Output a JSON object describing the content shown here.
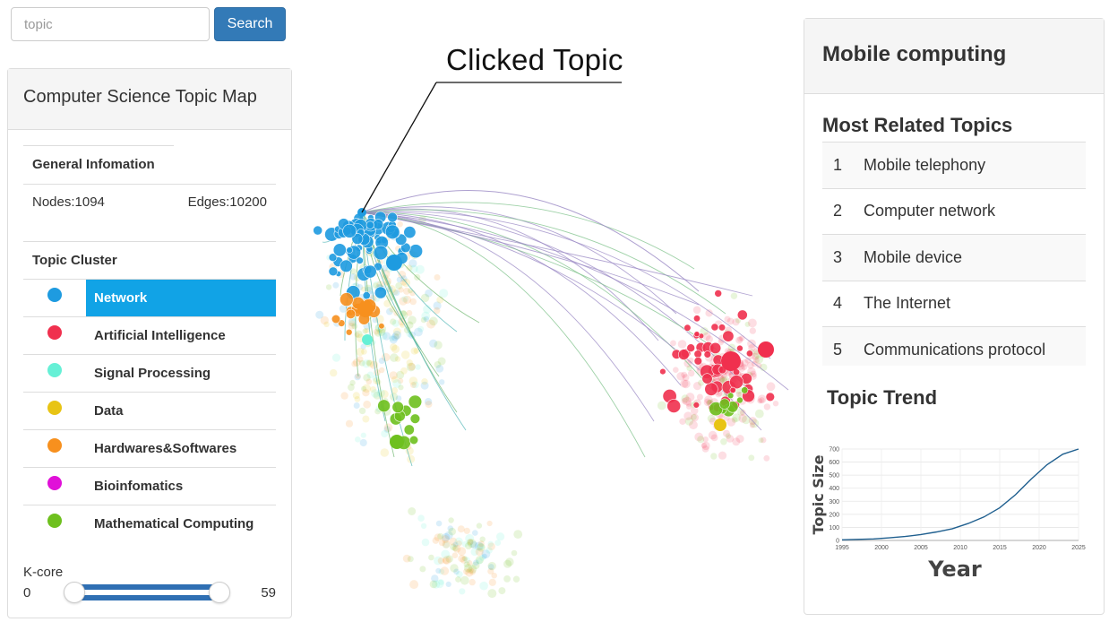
{
  "search": {
    "placeholder": "topic",
    "button_label": "Search"
  },
  "left_panel": {
    "title": "Computer Science Topic Map",
    "general_title": "General Infomation",
    "nodes_label": "Nodes:1094",
    "edges_label": "Edges:10200",
    "cluster_title": "Topic Cluster",
    "clusters": [
      {
        "label": "Network",
        "color": "#1e9be0",
        "active": true
      },
      {
        "label": "Artificial Intelligence",
        "color": "#f0304e",
        "active": false
      },
      {
        "label": "Signal Processing",
        "color": "#66f0d6",
        "active": false
      },
      {
        "label": "Data",
        "color": "#e8c414",
        "active": false
      },
      {
        "label": "Hardwares&Softwares",
        "color": "#f7901e",
        "active": false
      },
      {
        "label": "Bioinfomatics",
        "color": "#e010d8",
        "active": false
      },
      {
        "label": "Mathematical Computing",
        "color": "#6ec01e",
        "active": false
      }
    ],
    "kcore": {
      "label": "K-core",
      "min": "0",
      "max": "59"
    }
  },
  "graph": {
    "callout": "Clicked Topic"
  },
  "right_panel": {
    "title": "Mobile computing",
    "related_title": "Most Related Topics",
    "related": [
      {
        "rank": "1",
        "name": "Mobile telephony"
      },
      {
        "rank": "2",
        "name": "Computer network"
      },
      {
        "rank": "3",
        "name": "Mobile device"
      },
      {
        "rank": "4",
        "name": "The Internet"
      },
      {
        "rank": "5",
        "name": "Communications protocol"
      }
    ],
    "trend_title": "Topic Trend"
  },
  "chart_data": {
    "type": "line",
    "xlabel": "Year",
    "ylabel": "Topic Size",
    "xlim": [
      1995,
      2025
    ],
    "ylim": [
      0,
      700
    ],
    "xticks": [
      "1995",
      "2000",
      "2005",
      "2010",
      "2015",
      "2020",
      "2025"
    ],
    "yticks": [
      "0",
      "100",
      "200",
      "300",
      "400",
      "500",
      "600",
      "700"
    ],
    "grid": true,
    "line_color": "#1f5f8f",
    "x": [
      1995,
      1997,
      1999,
      2001,
      2003,
      2005,
      2007,
      2009,
      2011,
      2013,
      2015,
      2017,
      2019,
      2021,
      2023,
      2025
    ],
    "y": [
      5,
      8,
      12,
      20,
      30,
      45,
      65,
      90,
      130,
      180,
      250,
      350,
      470,
      580,
      660,
      700
    ]
  }
}
